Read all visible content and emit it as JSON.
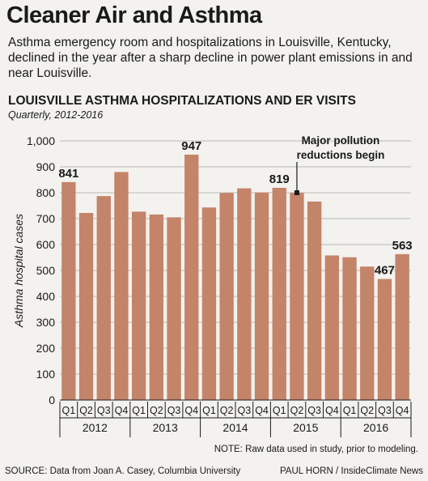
{
  "header": {
    "title": "Cleaner Air and Asthma",
    "subtitle": "Asthma emergency room and hospitalizations in Louisville, Kentucky, declined in the year after a sharp decline in power plant emissions in and near Louisville."
  },
  "chart_data": {
    "type": "bar",
    "title": "LOUISVILLE ASTHMA HOSPITALIZATIONS AND ER VISITS",
    "subtitle": "Quarterly, 2012-2016",
    "ylabel": "Asthma hospital cases",
    "ylim": [
      0,
      1000
    ],
    "yticks": [
      0,
      100,
      200,
      300,
      400,
      500,
      600,
      700,
      800,
      900,
      1000
    ],
    "ytick_labels": [
      "0",
      "100",
      "200",
      "300",
      "400",
      "500",
      "600",
      "700",
      "800",
      "900",
      "1,000"
    ],
    "grid": true,
    "bar_color": "#c4846a",
    "years": [
      "2012",
      "2013",
      "2014",
      "2015",
      "2016"
    ],
    "quarters": [
      "Q1",
      "Q2",
      "Q3",
      "Q4"
    ],
    "categories": [
      "Q1",
      "Q2",
      "Q3",
      "Q4",
      "Q1",
      "Q2",
      "Q3",
      "Q4",
      "Q1",
      "Q2",
      "Q3",
      "Q4",
      "Q1",
      "Q2",
      "Q3",
      "Q4",
      "Q1",
      "Q2",
      "Q3",
      "Q4"
    ],
    "values": [
      841,
      722,
      787,
      880,
      727,
      716,
      705,
      947,
      743,
      799,
      817,
      801,
      819,
      800,
      766,
      558,
      551,
      515,
      467,
      563
    ],
    "labeled_values": [
      {
        "index": 0,
        "text": "841"
      },
      {
        "index": 7,
        "text": "947"
      },
      {
        "index": 12,
        "text": "819"
      },
      {
        "index": 18,
        "text": "467"
      },
      {
        "index": 19,
        "text": "563"
      }
    ],
    "annotation": {
      "index": 13,
      "lines": [
        "Major pollution",
        "reductions begin"
      ]
    }
  },
  "footer": {
    "note": "NOTE: Raw data used in study, prior to modeling.",
    "source": "SOURCE: Data from Joan A. Casey, Columbia University",
    "credit": "PAUL HORN / InsideClimate News"
  }
}
